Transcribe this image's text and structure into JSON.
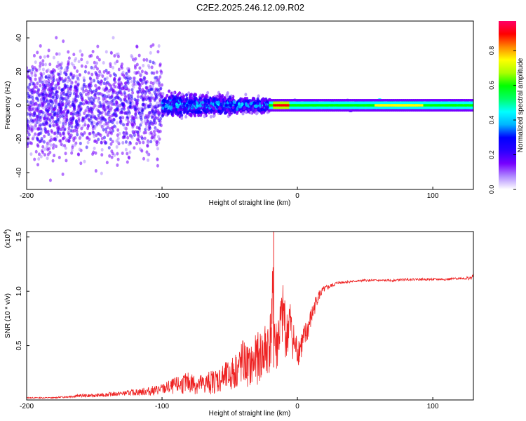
{
  "title": "C2E2.2025.246.12.09.R02",
  "chart_data": [
    {
      "type": "heatmap",
      "name": "spectrogram",
      "xlabel": "Height of straight line (km)",
      "ylabel": "Frequency (Hz)",
      "xlim": [
        -200,
        130
      ],
      "ylim": [
        -50,
        50
      ],
      "x_ticks": [
        -200,
        -100,
        0,
        100
      ],
      "x_tick_labels": [
        "-200",
        "-100",
        "0",
        "100"
      ],
      "y_ticks": [
        -40,
        -20,
        0,
        20,
        40
      ],
      "y_tick_labels": [
        "-40",
        "-20",
        "0",
        "20",
        "40"
      ],
      "colorbar": {
        "label": "Normalized spectral amplitude",
        "range": [
          0,
          0.97
        ],
        "ticks": [
          0.0,
          0.2,
          0.4,
          0.6,
          0.8
        ],
        "tick_labels": [
          "0.0",
          "0.2",
          "0.4",
          "0.6",
          "0.8"
        ],
        "colors": [
          "#ffffff",
          "#b18cff",
          "#7700ff",
          "#2a00ff",
          "#0000ff",
          "#00b4ff",
          "#00ffff",
          "#00ff66",
          "#00ff00",
          "#aaff00",
          "#ffff00",
          "#ff8800",
          "#ff0000",
          "#ff0066"
        ]
      },
      "regions": [
        {
          "x_from": -200,
          "x_to": -100,
          "freq_spread": 50,
          "amplitude": 0.2,
          "description": "sparse scattered low amplitude"
        },
        {
          "x_from": -100,
          "x_to": -20,
          "freq_spread": 12,
          "amplitude": 0.45,
          "description": "broad band"
        },
        {
          "x_from": -20,
          "x_to": 130,
          "freq_spread": 4,
          "amplitude": 0.7,
          "description": "narrow band near 0 Hz, peaks near -12 and 75 km"
        }
      ]
    },
    {
      "type": "line",
      "name": "snr",
      "xlabel": "Height of straight line (km)",
      "ylabel": "SNR (10 * v/v)",
      "multiplier_label": "(x10",
      "multiplier_exponent": "4",
      "multiplier_suffix": ")",
      "xlim": [
        -200,
        130
      ],
      "ylim": [
        0,
        1.55
      ],
      "x_ticks": [
        -200,
        -100,
        0,
        100
      ],
      "x_tick_labels": [
        "-200",
        "-100",
        "0",
        "100"
      ],
      "y_ticks": [
        0.5,
        1.0,
        1.5
      ],
      "y_tick_labels": [
        "0.5",
        "1.0",
        "1.5"
      ],
      "color": "#ee2222",
      "series": [
        {
          "name": "SNR",
          "x": [
            -200,
            -190,
            -180,
            -170,
            -160,
            -150,
            -140,
            -130,
            -120,
            -110,
            -100,
            -90,
            -80,
            -70,
            -60,
            -50,
            -45,
            -40,
            -35,
            -30,
            -25,
            -20,
            -18,
            -16,
            -14,
            -12,
            -10,
            -8,
            -6,
            -4,
            -2,
            0,
            5,
            10,
            15,
            20,
            25,
            30,
            40,
            50,
            60,
            70,
            80,
            90,
            100,
            110,
            120,
            128,
            130
          ],
          "values": [
            0.02,
            0.02,
            0.02,
            0.03,
            0.04,
            0.04,
            0.05,
            0.06,
            0.07,
            0.08,
            0.1,
            0.13,
            0.16,
            0.14,
            0.18,
            0.22,
            0.28,
            0.35,
            0.3,
            0.38,
            0.42,
            0.55,
            0.9,
            0.45,
            0.6,
            0.7,
            0.8,
            0.55,
            0.75,
            0.6,
            0.5,
            0.45,
            0.55,
            0.75,
            0.95,
            1.02,
            1.05,
            1.08,
            1.09,
            1.1,
            1.1,
            1.1,
            1.11,
            1.11,
            1.11,
            1.11,
            1.12,
            1.12,
            1.14
          ],
          "noise": [
            0.005,
            0.005,
            0.005,
            0.01,
            0.015,
            0.015,
            0.02,
            0.02,
            0.03,
            0.04,
            0.05,
            0.08,
            0.1,
            0.1,
            0.12,
            0.15,
            0.18,
            0.22,
            0.2,
            0.24,
            0.28,
            0.3,
            0.4,
            0.3,
            0.3,
            0.3,
            0.3,
            0.25,
            0.25,
            0.2,
            0.18,
            0.15,
            0.15,
            0.1,
            0.06,
            0.03,
            0.02,
            0.015,
            0.01,
            0.01,
            0.01,
            0.01,
            0.01,
            0.01,
            0.01,
            0.01,
            0.01,
            0.02,
            0.02
          ]
        }
      ],
      "spike": {
        "x": -17.5,
        "value": 1.55
      }
    }
  ]
}
